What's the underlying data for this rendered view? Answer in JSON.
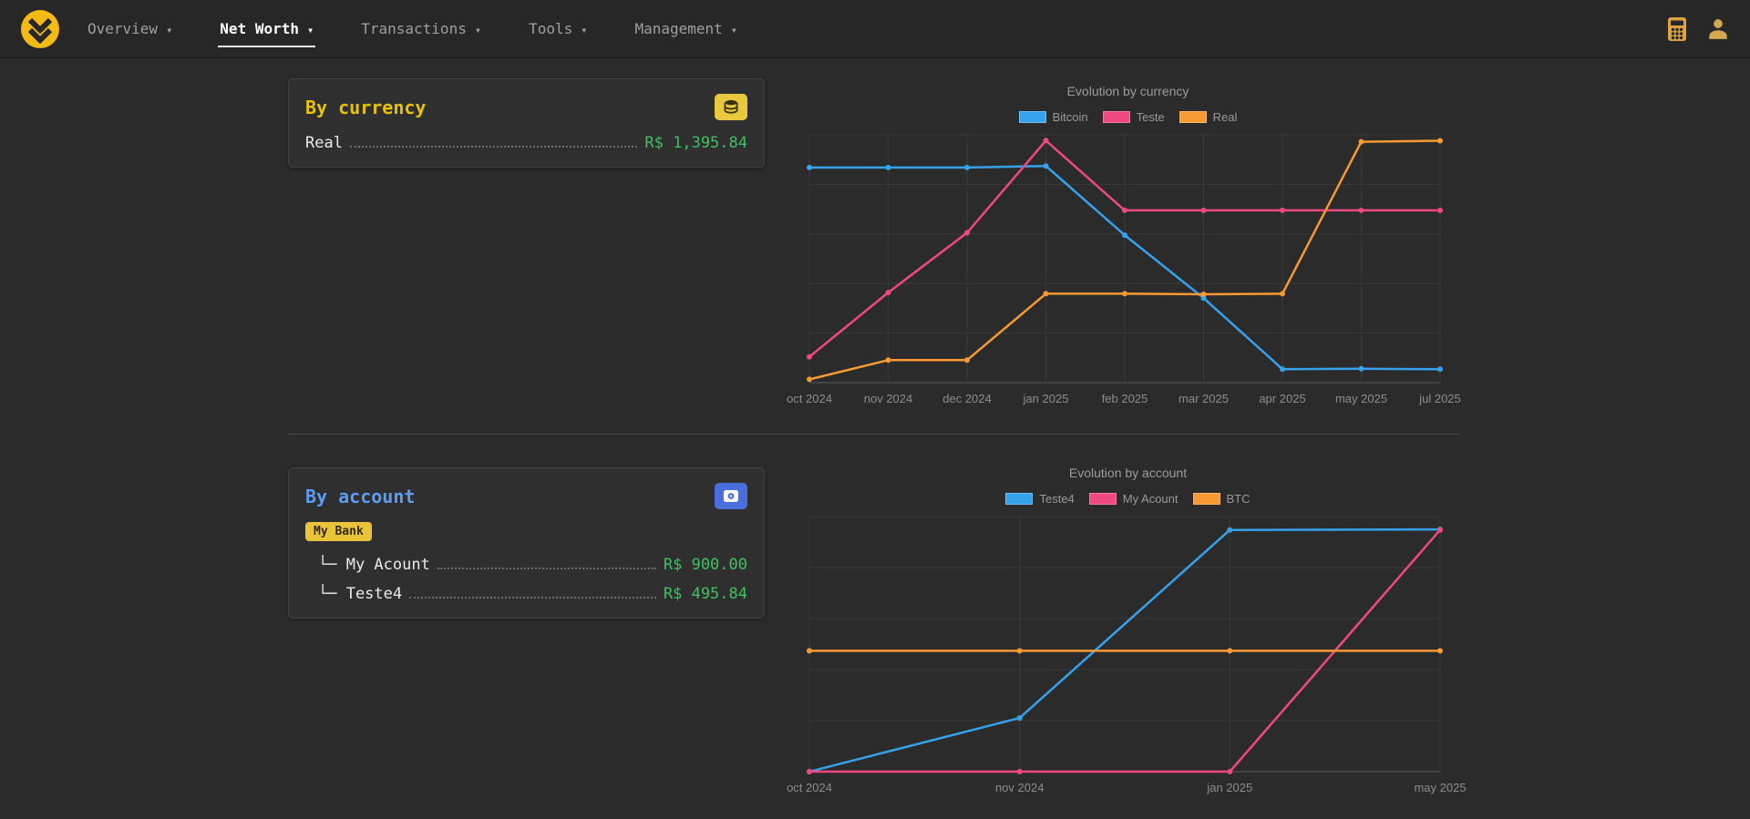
{
  "nav": {
    "items": [
      {
        "label": "Overview",
        "caret": "▾",
        "active": false
      },
      {
        "label": "Net Worth",
        "caret": "▾",
        "active": true
      },
      {
        "label": "Transactions",
        "caret": "▾",
        "active": false
      },
      {
        "label": "Tools",
        "caret": "▾",
        "active": false
      },
      {
        "label": "Management",
        "caret": "▾",
        "active": false
      }
    ],
    "right_icons": [
      "calculator-icon",
      "user-icon"
    ]
  },
  "cards": {
    "currency": {
      "title": "By currency",
      "icon": "coins-icon",
      "accent_color": "#e9c300",
      "rows": [
        {
          "label": "Real",
          "value": "R$ 1,395.84"
        }
      ]
    },
    "account": {
      "title": "By account",
      "icon": "bank-safe-icon",
      "accent_color": "#5b9df5",
      "badge": "My Bank",
      "rows": [
        {
          "label": "└─ My Acount",
          "value": "R$ 900.00"
        },
        {
          "label": "└─ Teste4",
          "value": "R$ 495.84"
        }
      ]
    }
  },
  "colors": {
    "brand_yellow": "#f2ba12",
    "badge_yellow": "#e9c438",
    "value_green": "#3fc162",
    "title_blue": "#5b9df5",
    "series_blue": "#36a2eb",
    "series_pink": "#ee4981",
    "series_orange": "#f79a34"
  },
  "chart_data": [
    {
      "type": "line",
      "title": "Evolution by currency",
      "xlabel": "",
      "ylabel": "",
      "grid": true,
      "legend_position": "top",
      "categories": [
        "oct 2024",
        "nov 2024",
        "dec 2024",
        "jan 2025",
        "feb 2025",
        "mar 2025",
        "apr 2025",
        "may 2025",
        "jul 2025"
      ],
      "ylim": [
        0,
        1430
      ],
      "series": [
        {
          "name": "Bitcoin",
          "color": "#36a2eb",
          "values": [
            1241,
            1241,
            1241,
            1250,
            851,
            488,
            78,
            80,
            78
          ]
        },
        {
          "name": "Teste",
          "color": "#ee4981",
          "values": [
            149,
            520,
            865,
            1397,
            994,
            994,
            994,
            994,
            994
          ]
        },
        {
          "name": "Real",
          "color": "#f79a34",
          "values": [
            19,
            130,
            130,
            513,
            513,
            510,
            513,
            1390,
            1395.84
          ]
        }
      ]
    },
    {
      "type": "line",
      "title": "Evolution by account",
      "xlabel": "",
      "ylabel": "",
      "grid": true,
      "legend_position": "top",
      "categories": [
        "oct 2024",
        "nov 2024",
        "jan 2025",
        "may 2025"
      ],
      "ylim": [
        0,
        950
      ],
      "series": [
        {
          "name": "Teste4",
          "color": "#36a2eb",
          "values": [
            0,
            200,
            900,
            902
          ]
        },
        {
          "name": "My Acount",
          "color": "#ee4981",
          "values": [
            0,
            0,
            0,
            900
          ]
        },
        {
          "name": "BTC",
          "color": "#f79a34",
          "values": [
            450,
            450,
            450,
            450
          ]
        }
      ]
    }
  ]
}
